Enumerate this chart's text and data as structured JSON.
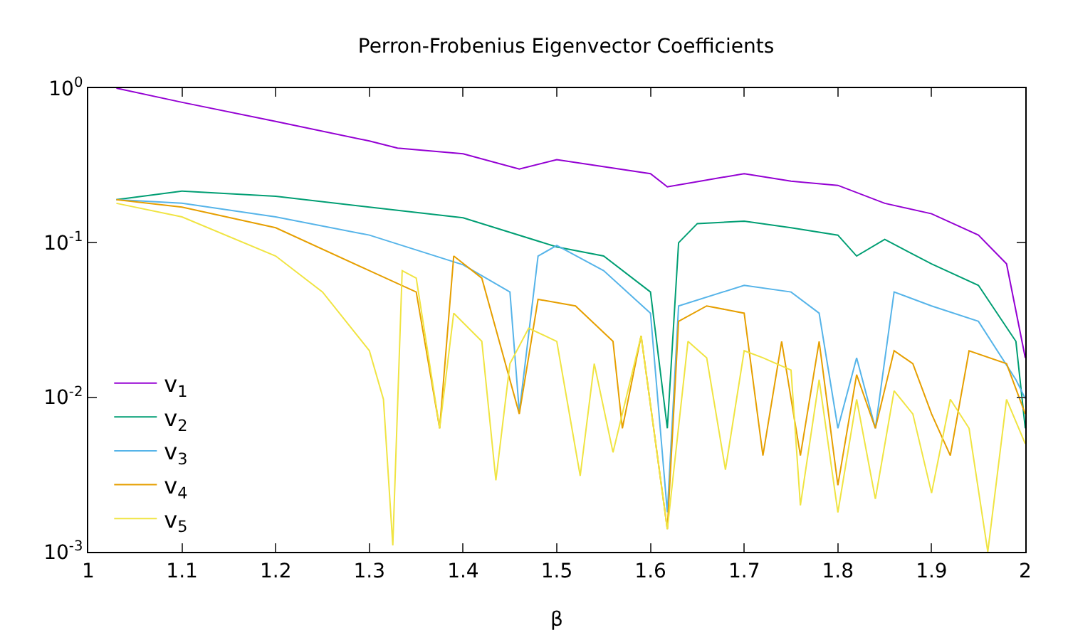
{
  "chart_data": {
    "type": "line",
    "title": "Perron-Frobenius Eigenvector Coefficients",
    "xlabel": "β",
    "log": "y",
    "grid": false,
    "legend": "bottom left",
    "marker": "none",
    "line_style": "solid",
    "xlim": [
      1,
      2
    ],
    "xticks": [
      1,
      1.1,
      1.2,
      1.3,
      1.4,
      1.5,
      1.6,
      1.7,
      1.8,
      1.9,
      2
    ],
    "ylim": [
      0.001,
      1
    ],
    "yticks": [
      {
        "value": 0.001,
        "label": "10$^{-3}$"
      },
      {
        "value": 0.01,
        "label": "10$^{-2}$"
      },
      {
        "value": 0.1,
        "label": "10$^{-1}$"
      },
      {
        "value": 1,
        "label": "10$^{0}$"
      }
    ],
    "series": [
      {
        "name": "v$_{1}$",
        "color": "#9400d3",
        "x": [
          1.03,
          1.1,
          1.2,
          1.3,
          1.33,
          1.4,
          1.46,
          1.5,
          1.6,
          1.618,
          1.7,
          1.75,
          1.8,
          1.85,
          1.9,
          1.95,
          1.98,
          2
        ],
        "values": [
          1.0,
          0.81,
          0.61,
          0.455,
          0.41,
          0.376,
          0.3,
          0.345,
          0.28,
          0.23,
          0.28,
          0.25,
          0.235,
          0.18,
          0.154,
          0.112,
          0.073,
          0.018
        ]
      },
      {
        "name": "v$_{2}$",
        "color": "#009e73",
        "x": [
          1.03,
          1.1,
          1.2,
          1.3,
          1.4,
          1.5,
          1.55,
          1.6,
          1.618,
          1.63,
          1.65,
          1.7,
          1.75,
          1.8,
          1.82,
          1.85,
          1.9,
          1.95,
          1.99,
          2
        ],
        "values": [
          0.19,
          0.216,
          0.2,
          0.17,
          0.145,
          0.094,
          0.082,
          0.048,
          0.0063,
          0.1,
          0.133,
          0.138,
          0.125,
          0.112,
          0.082,
          0.105,
          0.073,
          0.053,
          0.023,
          0.0063
        ]
      },
      {
        "name": "v$_{3}$",
        "color": "#56b4e9",
        "x": [
          1.03,
          1.1,
          1.2,
          1.3,
          1.4,
          1.45,
          1.46,
          1.48,
          1.5,
          1.55,
          1.6,
          1.618,
          1.63,
          1.7,
          1.75,
          1.78,
          1.8,
          1.82,
          1.84,
          1.86,
          1.9,
          1.95,
          1.99,
          2
        ],
        "values": [
          0.19,
          0.18,
          0.147,
          0.112,
          0.072,
          0.048,
          0.008,
          0.082,
          0.096,
          0.066,
          0.035,
          0.0018,
          0.039,
          0.053,
          0.048,
          0.035,
          0.0063,
          0.018,
          0.0063,
          0.048,
          0.039,
          0.031,
          0.013,
          0.0098
        ]
      },
      {
        "name": "v$_{4}$",
        "color": "#e69f00",
        "x": [
          1.03,
          1.1,
          1.2,
          1.3,
          1.35,
          1.375,
          1.39,
          1.42,
          1.46,
          1.48,
          1.52,
          1.56,
          1.57,
          1.59,
          1.618,
          1.63,
          1.66,
          1.7,
          1.72,
          1.74,
          1.76,
          1.78,
          1.8,
          1.82,
          1.84,
          1.86,
          1.88,
          1.9,
          1.92,
          1.94,
          1.98,
          2
        ],
        "values": [
          0.19,
          0.17,
          0.125,
          0.066,
          0.048,
          0.0063,
          0.082,
          0.059,
          0.0078,
          0.043,
          0.039,
          0.023,
          0.0063,
          0.025,
          0.0014,
          0.031,
          0.039,
          0.035,
          0.0042,
          0.023,
          0.0042,
          0.023,
          0.0027,
          0.014,
          0.0063,
          0.02,
          0.0165,
          0.0078,
          0.0042,
          0.02,
          0.0165,
          0.0078
        ]
      },
      {
        "name": "v$_{5}$",
        "color": "#f0e442",
        "x": [
          1.03,
          1.1,
          1.2,
          1.25,
          1.3,
          1.315,
          1.325,
          1.335,
          1.35,
          1.375,
          1.39,
          1.42,
          1.435,
          1.45,
          1.47,
          1.5,
          1.525,
          1.54,
          1.56,
          1.59,
          1.618,
          1.64,
          1.66,
          1.68,
          1.7,
          1.72,
          1.75,
          1.76,
          1.78,
          1.8,
          1.82,
          1.84,
          1.86,
          1.88,
          1.9,
          1.92,
          1.94,
          1.96,
          1.98,
          2
        ],
        "values": [
          0.18,
          0.147,
          0.082,
          0.048,
          0.02,
          0.0097,
          0.0011,
          0.066,
          0.059,
          0.0063,
          0.035,
          0.023,
          0.0029,
          0.0165,
          0.028,
          0.023,
          0.0031,
          0.0165,
          0.0044,
          0.025,
          0.0014,
          0.023,
          0.018,
          0.0034,
          0.02,
          0.018,
          0.015,
          0.002,
          0.013,
          0.0018,
          0.0097,
          0.0022,
          0.011,
          0.0078,
          0.0024,
          0.0097,
          0.0063,
          0.001,
          0.0097,
          0.005
        ]
      }
    ]
  }
}
